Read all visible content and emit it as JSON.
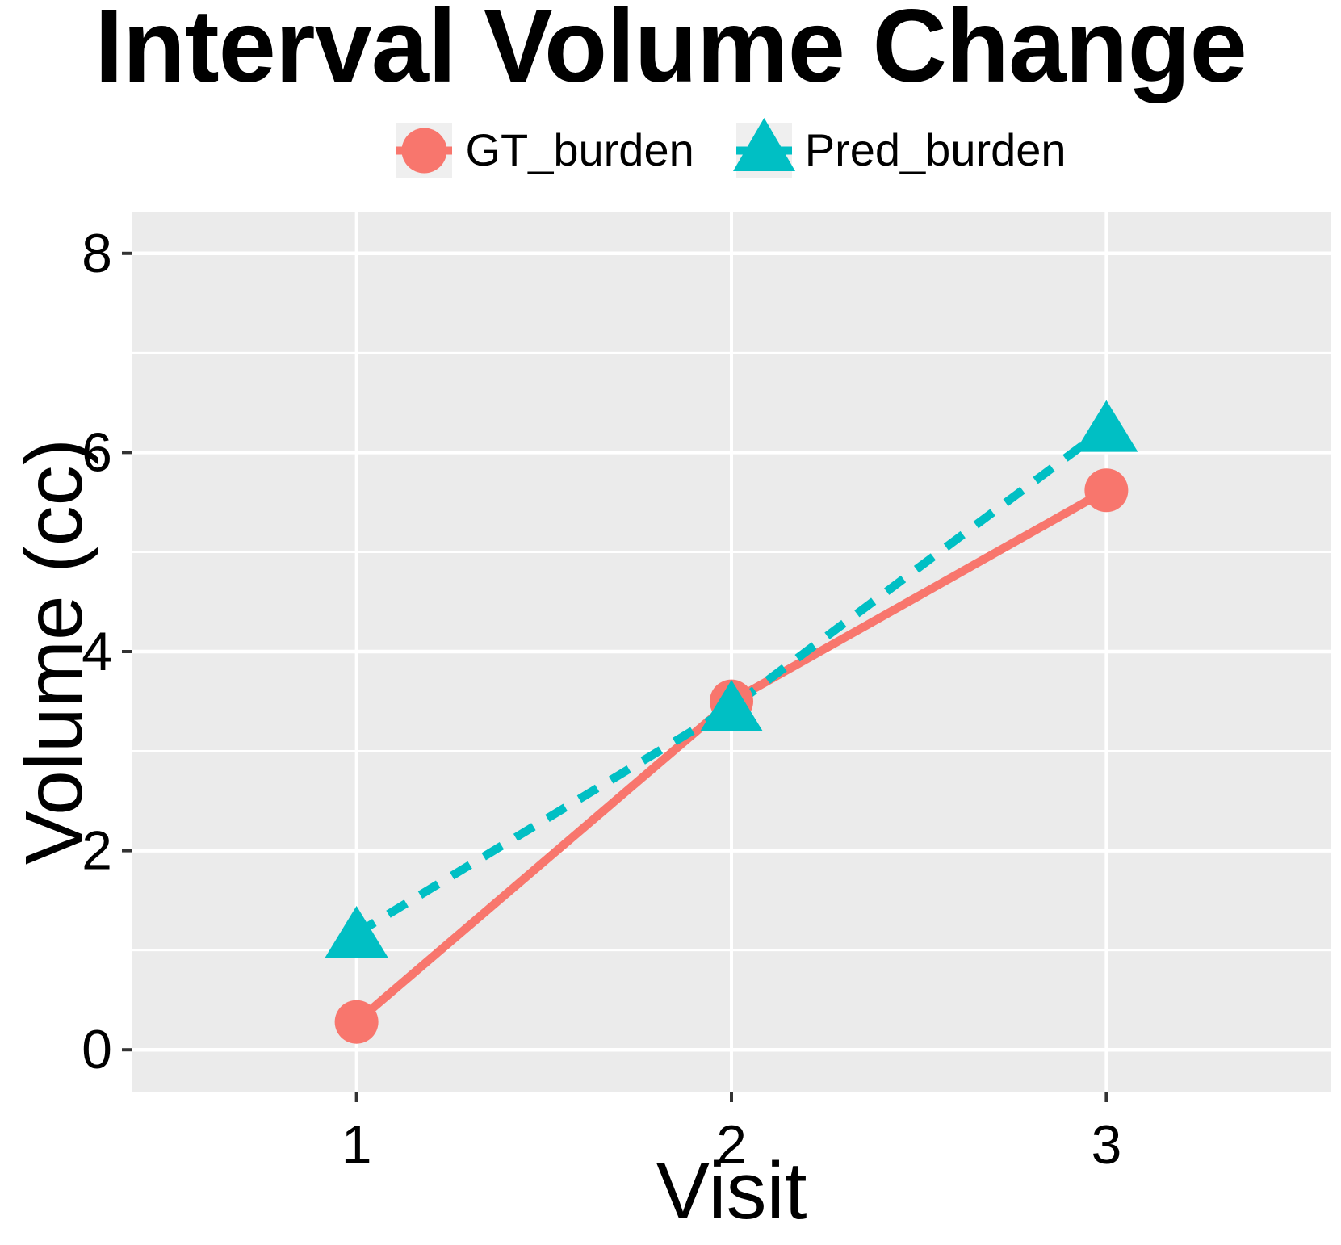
{
  "chart_data": {
    "type": "line",
    "title": "Interval Volume Change",
    "xlabel": "Visit",
    "ylabel": "Volume (cc)",
    "x": [
      1,
      2,
      3
    ],
    "series": [
      {
        "name": "GT_burden",
        "values": [
          0.28,
          3.5,
          5.62
        ],
        "color": "#F8766D",
        "line_style": "solid",
        "marker": "circle"
      },
      {
        "name": "Pred_burden",
        "values": [
          1.17,
          3.44,
          6.25
        ],
        "color": "#00BFC4",
        "line_style": "dashed",
        "marker": "triangle"
      }
    ],
    "xlim": [
      0.4,
      3.6
    ],
    "ylim": [
      -0.42,
      8.42
    ],
    "x_ticks": [
      1,
      2,
      3
    ],
    "y_ticks": [
      0,
      2,
      4,
      6,
      8
    ],
    "y_minor_ticks": [
      1,
      3,
      5,
      7
    ],
    "legend_position": "top",
    "grid": "horizontal major+minor, vertical major only",
    "panel_bg": "#EBEBEB",
    "grid_color": "#FFFFFF",
    "legend_key_bg": "#EFEFEF",
    "tick_mark_color": "#333333",
    "tick_label_color": "#000000"
  }
}
